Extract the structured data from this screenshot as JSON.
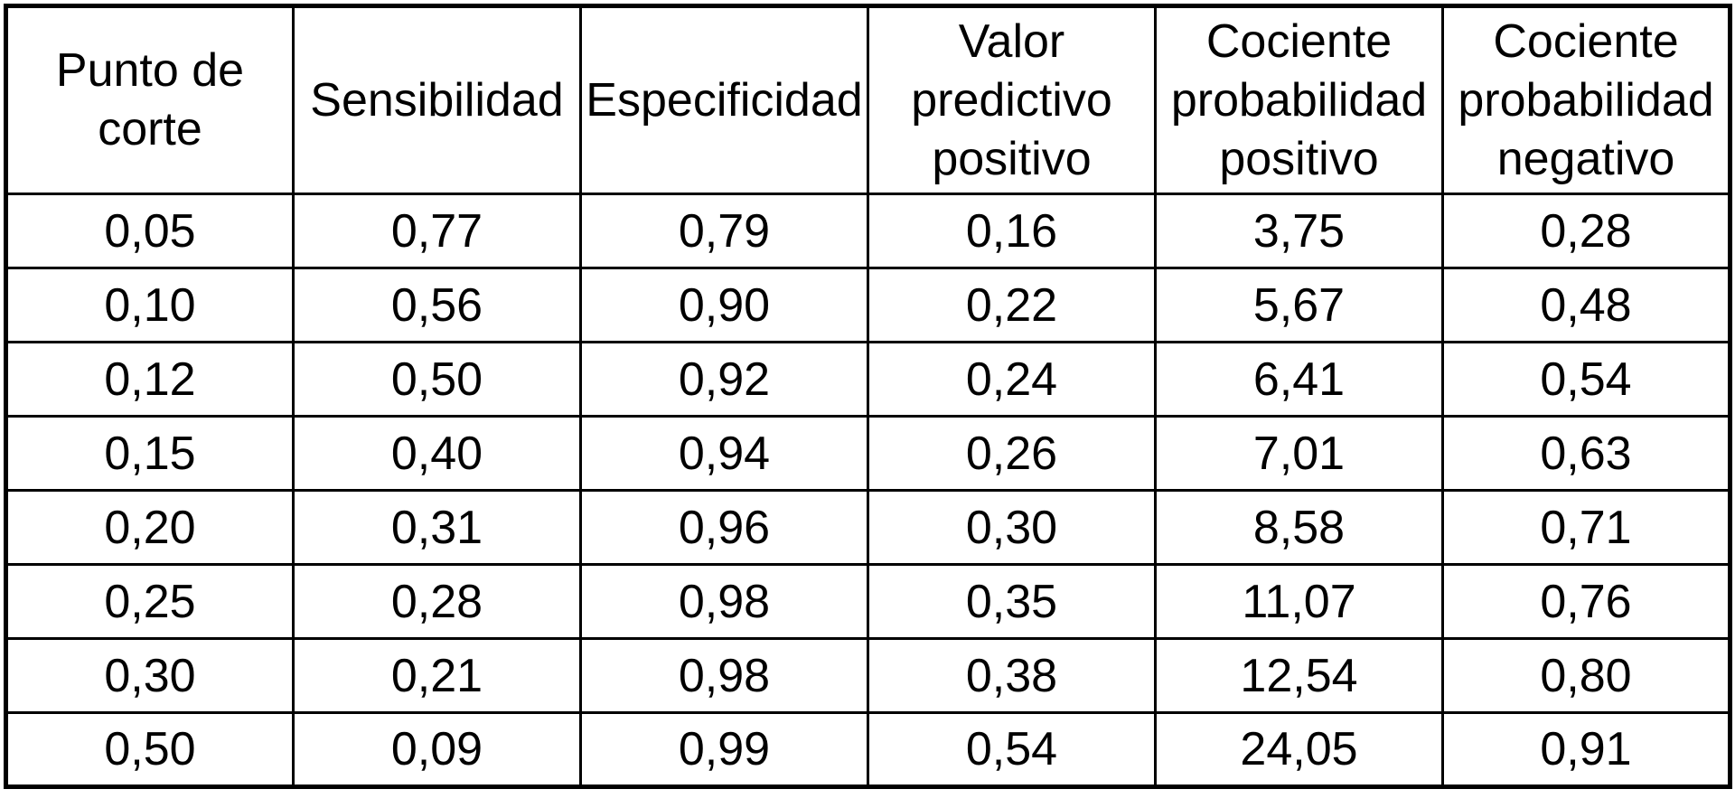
{
  "chart_data": {
    "type": "table",
    "title": "",
    "columns": [
      "Punto de corte",
      "Sensibilidad",
      "Especificidad",
      "Valor predictivo positivo",
      "Cociente probabilidad positivo",
      "Cociente probabilidad negativo"
    ],
    "rows": [
      [
        "0,05",
        "0,77",
        "0,79",
        "0,16",
        "3,75",
        "0,28"
      ],
      [
        "0,10",
        "0,56",
        "0,90",
        "0,22",
        "5,67",
        "0,48"
      ],
      [
        "0,12",
        "0,50",
        "0,92",
        "0,24",
        "6,41",
        "0,54"
      ],
      [
        "0,15",
        "0,40",
        "0,94",
        "0,26",
        "7,01",
        "0,63"
      ],
      [
        "0,20",
        "0,31",
        "0,96",
        "0,30",
        "8,58",
        "0,71"
      ],
      [
        "0,25",
        "0,28",
        "0,98",
        "0,35",
        "11,07",
        "0,76"
      ],
      [
        "0,30",
        "0,21",
        "0,98",
        "0,38",
        "12,54",
        "0,80"
      ],
      [
        "0,50",
        "0,09",
        "0,99",
        "0,54",
        "24,05",
        "0,91"
      ]
    ],
    "layout": {
      "decimal_separator": "comma",
      "grid": "all-borders",
      "border_color": "#000000",
      "background_color": "#ffffff",
      "text_color": "#000000",
      "header_alignment": "center",
      "cell_alignment": "center"
    }
  }
}
